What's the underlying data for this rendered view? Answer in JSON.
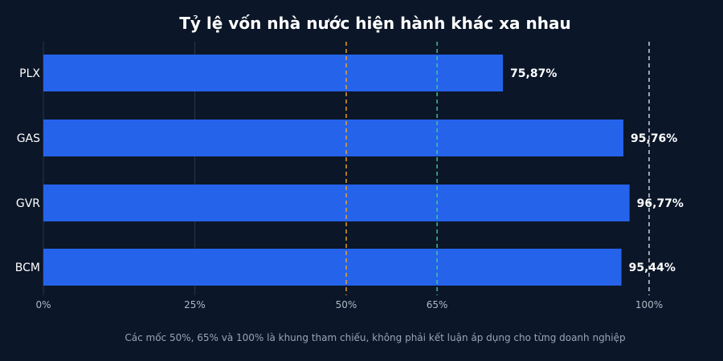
{
  "chart_data": {
    "type": "bar",
    "orientation": "horizontal",
    "title": "Tỷ lệ vốn nhà nước hiện hành khác xa nhau",
    "categories": [
      "PLX",
      "GAS",
      "GVR",
      "BCM"
    ],
    "values": [
      75.87,
      95.76,
      96.77,
      95.44
    ],
    "value_labels": [
      "75,87%",
      "95,76%",
      "96,77%",
      "95,44%"
    ],
    "xlim": [
      0,
      100
    ],
    "xticks": [
      {
        "value": 0,
        "label": "0%"
      },
      {
        "value": 25,
        "label": "25%"
      },
      {
        "value": 50,
        "label": "50%"
      },
      {
        "value": 65,
        "label": "65%"
      },
      {
        "value": 100,
        "label": "100%"
      }
    ],
    "reference_lines": [
      {
        "value": 50,
        "color": "#f5a623",
        "style": "dashed"
      },
      {
        "value": 65,
        "color": "#3ecf8e",
        "style": "dashed"
      },
      {
        "value": 100,
        "color": "#d8dde5",
        "style": "dashed"
      }
    ],
    "grid": true,
    "legend": "none",
    "colors": {
      "background": "#0b1628",
      "bar": "#2563eb",
      "grid": "#2a3649"
    },
    "footnote": "Các mốc 50%, 65% và 100% là khung tham chiếu, không phải kết luận áp dụng cho từng doanh nghiệp"
  }
}
